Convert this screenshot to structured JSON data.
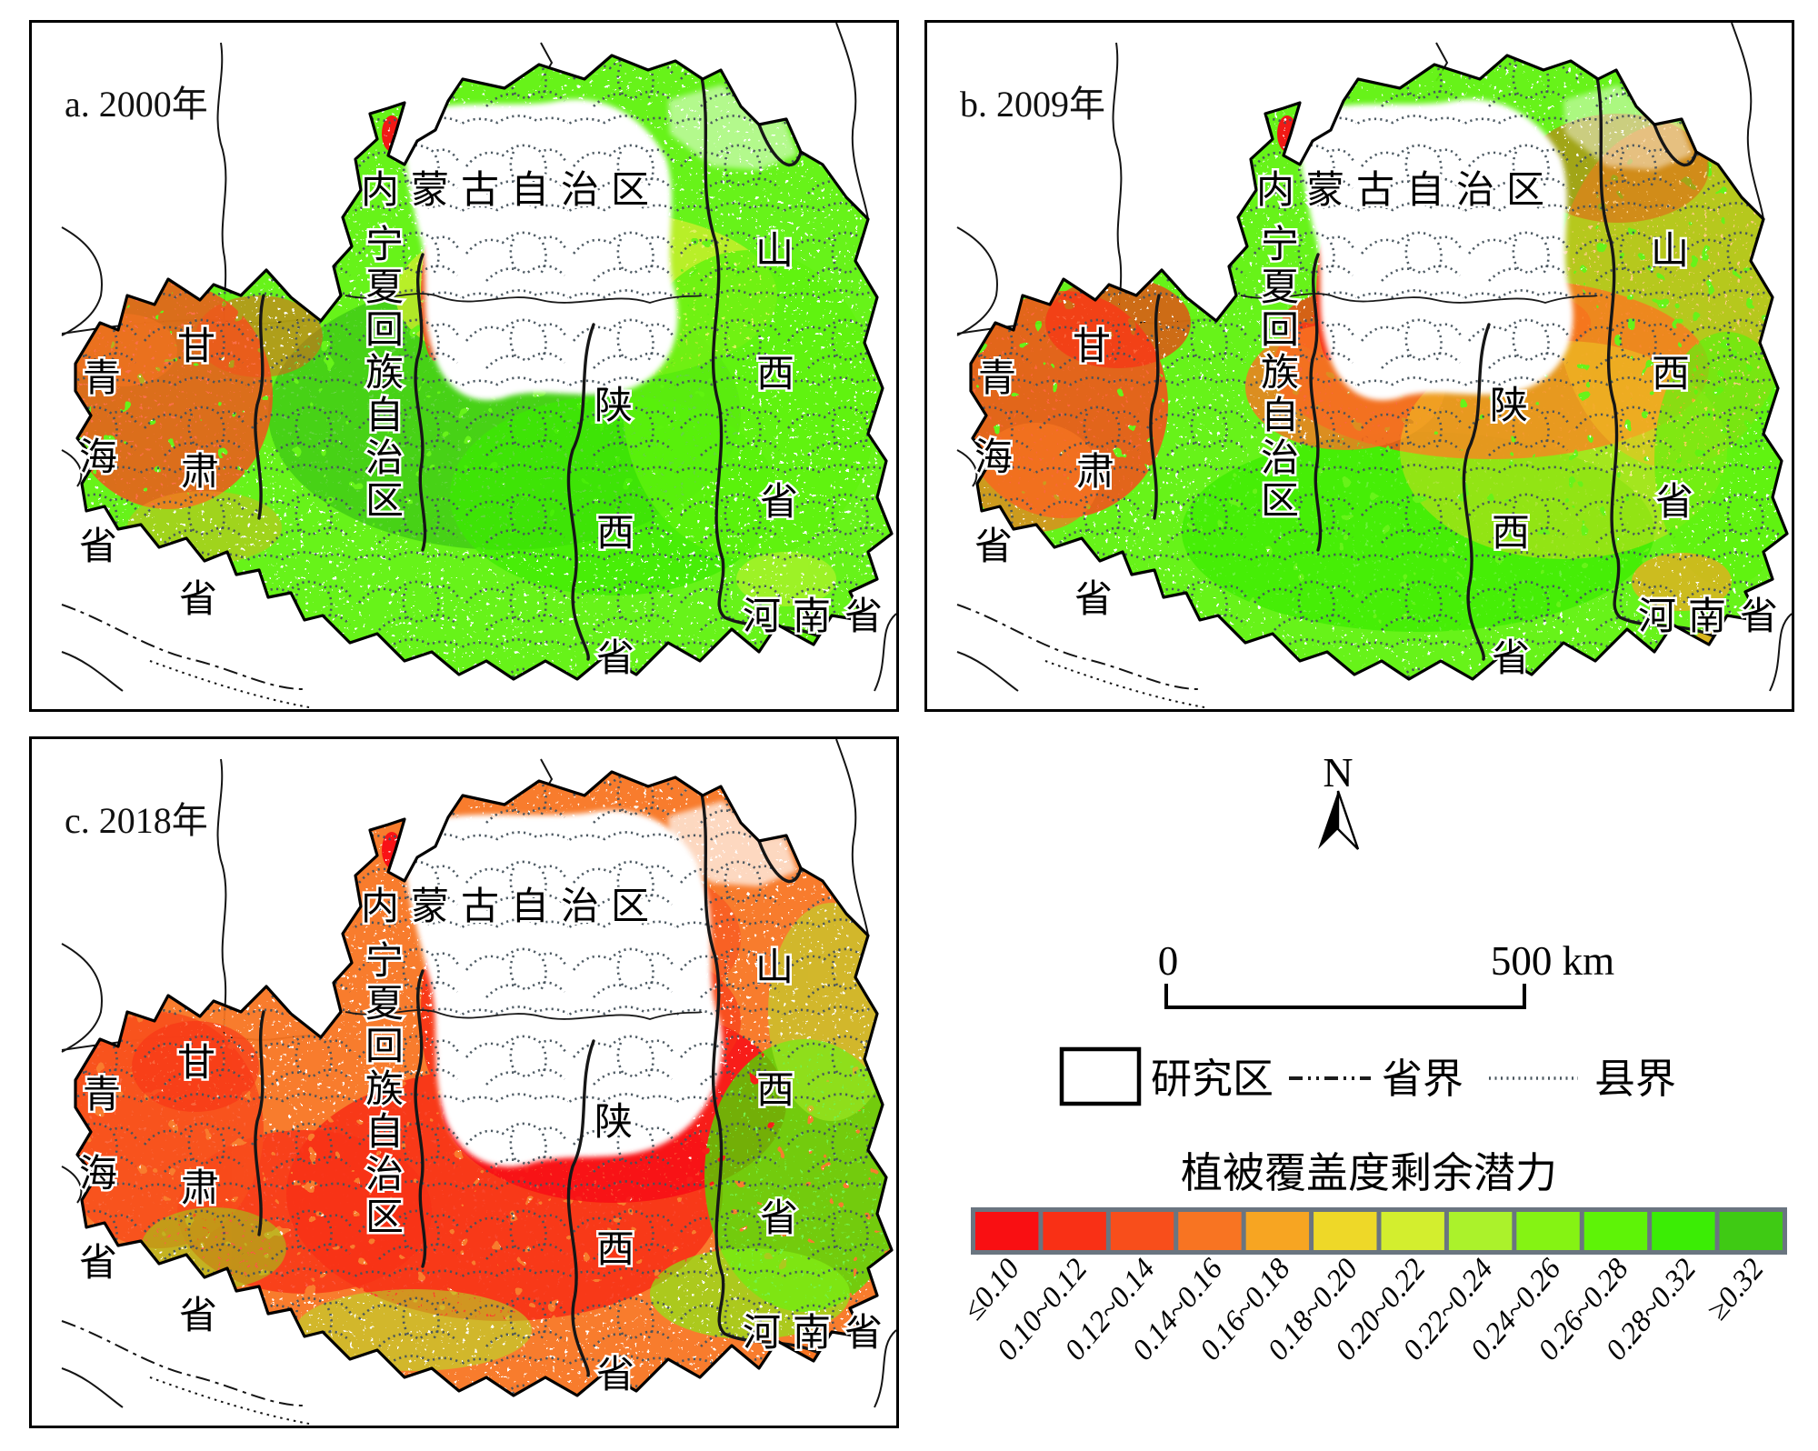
{
  "panels": [
    {
      "id": "a",
      "title": "a. 2000年"
    },
    {
      "id": "b",
      "title": "b. 2009年"
    },
    {
      "id": "c",
      "title": "c. 2018年"
    }
  ],
  "map_labels": {
    "inner_mongolia": "内蒙古自治区",
    "ningxia": "宁夏回族自治区",
    "gansu": "甘肃省",
    "qinghai": "青海省",
    "shaanxi": "陕西省",
    "shanxi": "山西省",
    "henan": "河南省"
  },
  "legend": {
    "north_label": "N",
    "scale_start": "0",
    "scale_end": "500 km",
    "items": [
      {
        "label": "研究区",
        "symbol": "study-area-box"
      },
      {
        "label": "省界",
        "symbol": "province-boundary-dashdot"
      },
      {
        "label": "县界",
        "symbol": "county-boundary-dotted"
      }
    ],
    "colorbar_title": "植被覆盖度剩余潜力",
    "classes": [
      {
        "label": "≤0.10",
        "color": "#f90f12"
      },
      {
        "label": "0.10~0.12",
        "color": "#f93015"
      },
      {
        "label": "0.12~0.14",
        "color": "#f84e1b"
      },
      {
        "label": "0.14~0.16",
        "color": "#f87422"
      },
      {
        "label": "0.16~0.18",
        "color": "#f7a522"
      },
      {
        "label": "0.18~0.20",
        "color": "#eed828"
      },
      {
        "label": "0.20~0.22",
        "color": "#d3ee2e"
      },
      {
        "label": "0.22~0.24",
        "color": "#abf22b"
      },
      {
        "label": "0.24~0.26",
        "color": "#85f313"
      },
      {
        "label": "0.26~0.28",
        "color": "#5ef307"
      },
      {
        "label": "0.28~0.32",
        "color": "#3bed05"
      },
      {
        "label": "≥0.32",
        "color": "#3fca14"
      }
    ],
    "frame_color": "#6a7580",
    "boundary_line_color": "#1c1c1c",
    "county_line_color": "#45525c"
  }
}
